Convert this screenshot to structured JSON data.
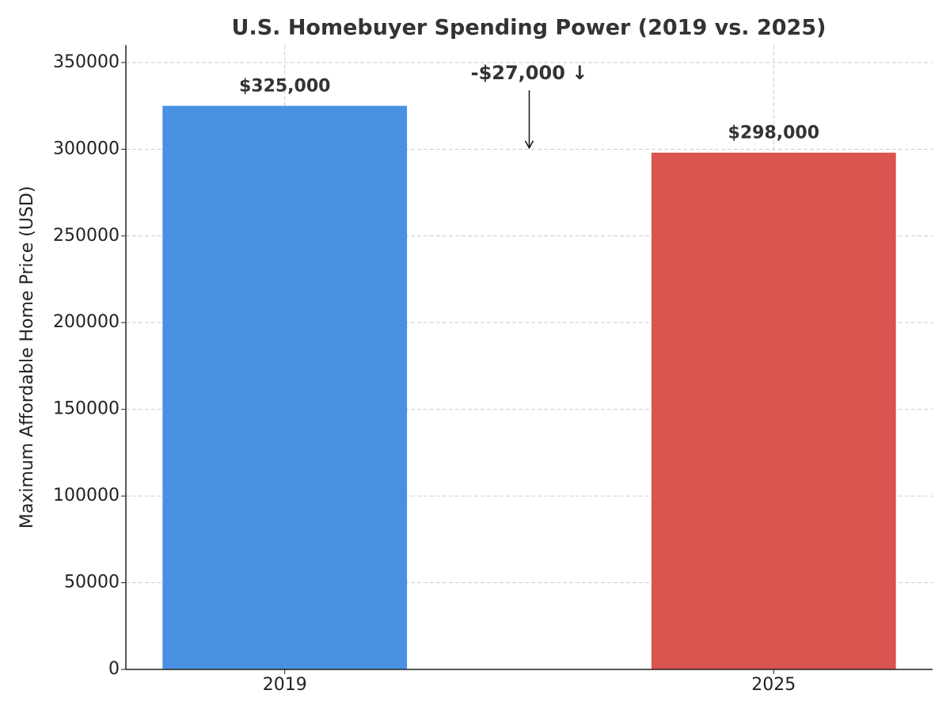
{
  "chart_data": {
    "type": "bar",
    "title": "U.S. Homebuyer Spending Power (2019 vs. 2025)",
    "y_label": "Maximum Affordable Home Price (USD)",
    "categories": [
      "2019",
      "2025"
    ],
    "values": [
      325000,
      298000
    ],
    "value_labels": [
      "$325,000",
      "$298,000"
    ],
    "colors": [
      "#4a90e2",
      "#d9534f"
    ],
    "annotation": "-$27,000 ↓",
    "ylim": [
      0,
      360000
    ],
    "yticks": [
      0,
      50000,
      100000,
      150000,
      200000,
      250000,
      300000,
      350000
    ],
    "grid": true
  }
}
